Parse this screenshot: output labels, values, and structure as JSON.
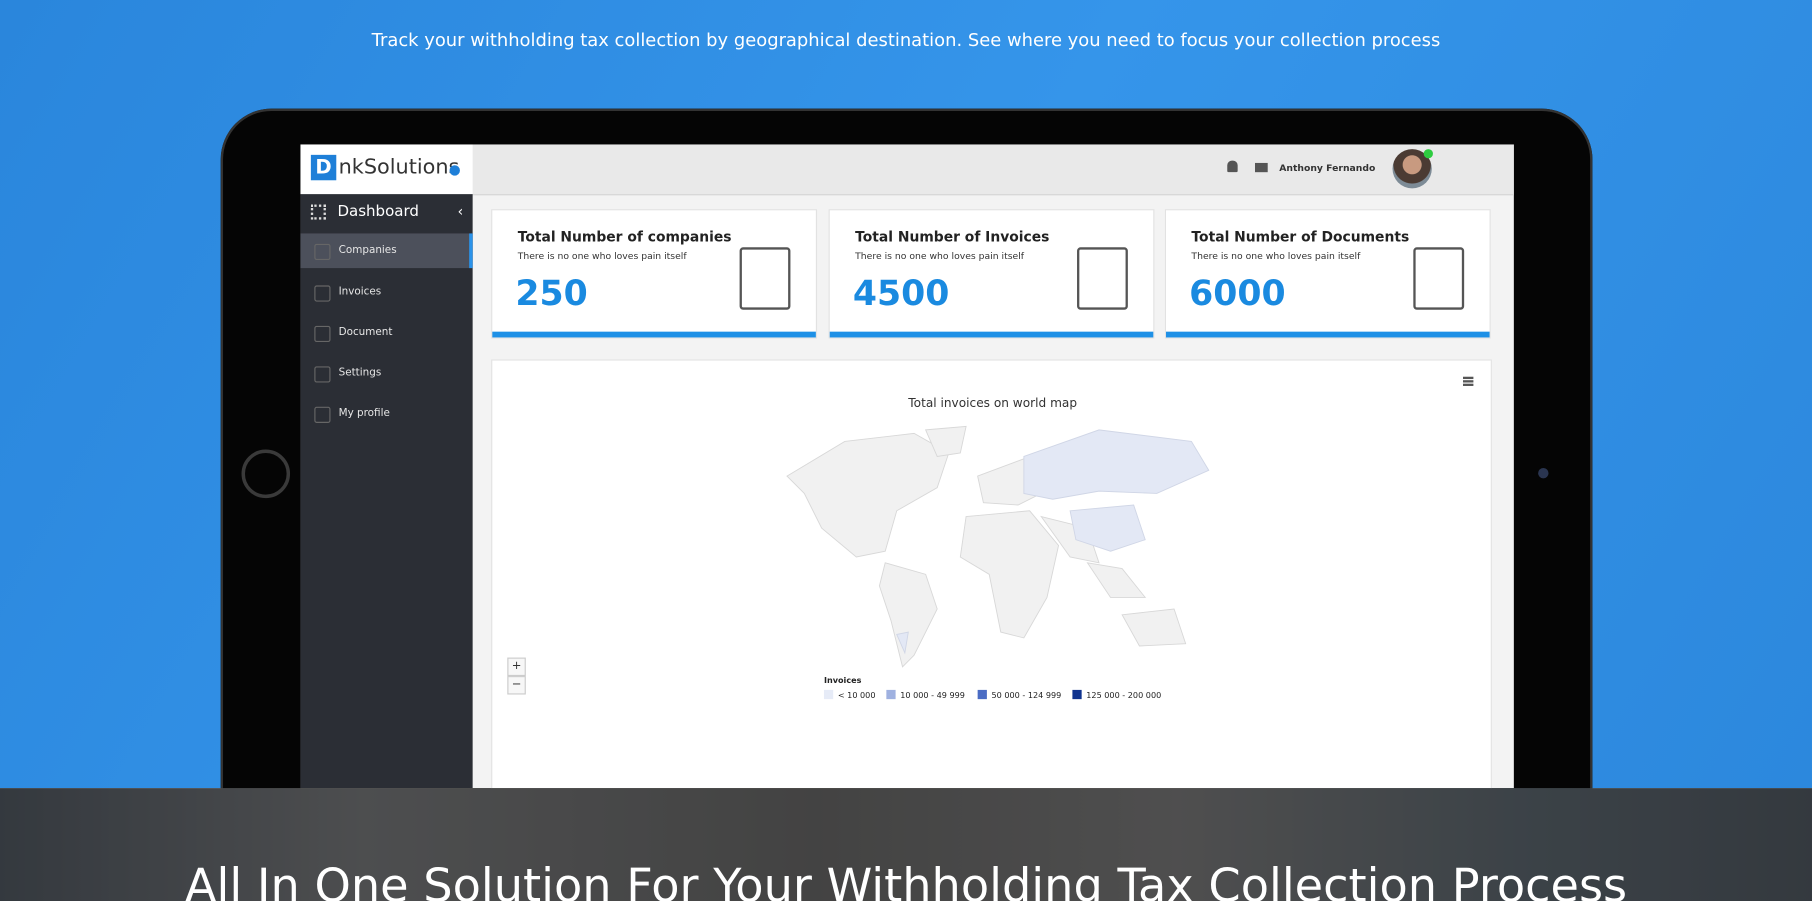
{
  "header": {
    "subtitle": "Track your withholding tax collection by geographical destination. See where you need to focus your collection process"
  },
  "app": {
    "logo": {
      "mark": "D",
      "name": "nkSolutions"
    },
    "user": "Anthony Fernando",
    "sidebar": {
      "title": "Dashboard",
      "items": [
        "Companies",
        "Invoices",
        "Document",
        "Settings",
        "My profile"
      ]
    },
    "cards": [
      {
        "title": "Total Number of companies",
        "subtitle": "There is no one who loves pain itself",
        "value": 250
      },
      {
        "title": "Total Number of Invoices",
        "subtitle": "There is no one who loves pain itself",
        "value": 4500
      },
      {
        "title": "Total Number of Documents",
        "subtitle": "There is no one who loves pain itself",
        "value": 6000
      }
    ],
    "map": {
      "title": "Total invoices on world map",
      "legend_title": "Invoices",
      "legend": [
        {
          "label": "< 10 000",
          "color": "#e6ebf7"
        },
        {
          "label": "10 000 - 49 999",
          "color": "#9fb1e0"
        },
        {
          "label": "50 000 - 124 999",
          "color": "#4a6cc4"
        },
        {
          "label": "125 000 - 200 000",
          "color": "#10338f"
        }
      ],
      "zoom_in": "+",
      "zoom_out": "−"
    }
  },
  "banner": {
    "heading": "All In One Solution For Your Withholding Tax Collection Process"
  }
}
